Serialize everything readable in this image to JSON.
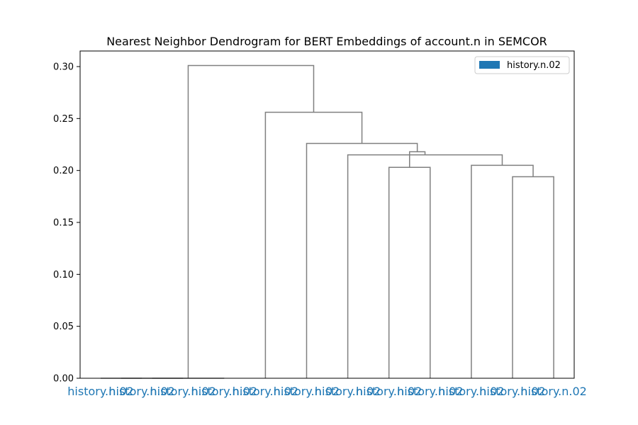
{
  "chart_data": {
    "type": "dendrogram",
    "title": "Nearest Neighbor Dendrogram for BERT Embeddings of account.n in SEMCOR",
    "xlabel": "",
    "ylabel": "",
    "ylim": [
      0,
      0.315
    ],
    "yticks": [
      0.0,
      0.05,
      0.1,
      0.15,
      0.2,
      0.25,
      0.3
    ],
    "ytick_labels": [
      "0.00",
      "0.05",
      "0.10",
      "0.15",
      "0.20",
      "0.25",
      "0.30"
    ],
    "leaves": [
      "history.n.02",
      "history.n.02",
      "history.n.02",
      "history.n.02",
      "history.n.02",
      "history.n.02",
      "history.n.02",
      "history.n.02",
      "history.n.02",
      "history.n.02",
      "history.n.02",
      "history.n.02"
    ],
    "leaf_color": "#1f77b4",
    "link_color": "#808080",
    "merges": [
      {
        "left": 0,
        "right": 1,
        "height": 0.0
      },
      {
        "left": 12,
        "right": 2,
        "height": 0.0
      },
      {
        "left": 13,
        "right": 3,
        "height": 0.0
      },
      {
        "left": 7,
        "right": 8,
        "height": 0.203
      },
      {
        "left": 10,
        "right": 11,
        "height": 0.194
      },
      {
        "left": 9,
        "right": 16,
        "height": 0.205
      },
      {
        "left": 6,
        "right": 17,
        "height": 0.215
      },
      {
        "left": 15,
        "right": 18,
        "height": 0.218
      },
      {
        "left": 5,
        "right": 19,
        "height": 0.226
      },
      {
        "left": 4,
        "right": 20,
        "height": 0.256
      },
      {
        "left": 14,
        "right": 21,
        "height": 0.301
      }
    ],
    "legend": {
      "entries": [
        {
          "label": "history.n.02",
          "color": "#1f77b4"
        }
      ],
      "placement": "top-right"
    },
    "grid": false
  }
}
